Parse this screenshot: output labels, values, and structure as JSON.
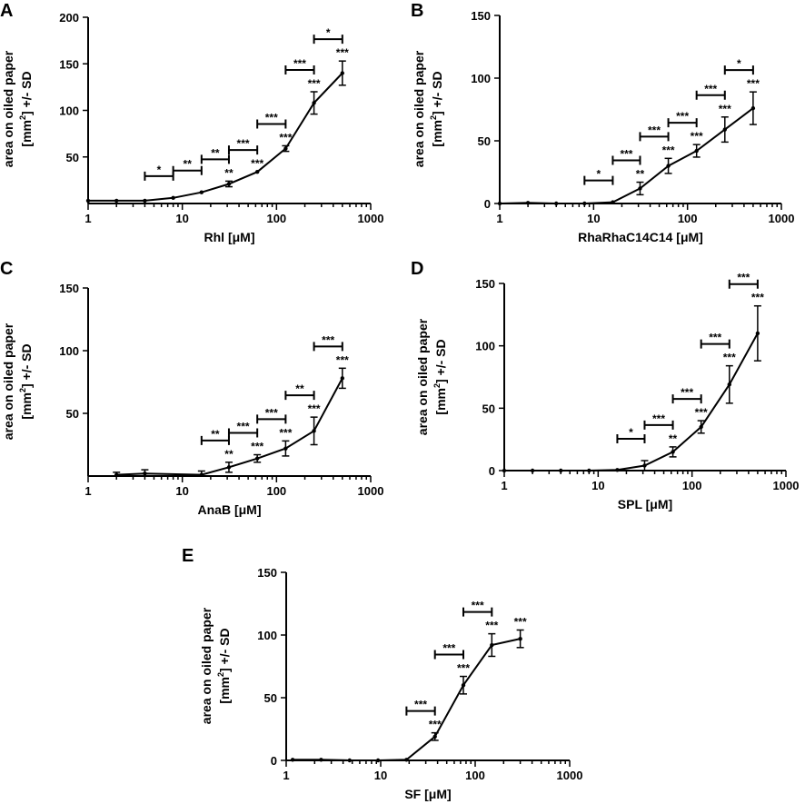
{
  "figure": {
    "ylabel_line1": "area on oiled paper",
    "ylabel_line2_pre": "[mm",
    "ylabel_line2_sup": "2",
    "ylabel_line2_post": "] +/- SD"
  },
  "chart_data": [
    {
      "panel": "A",
      "type": "line",
      "xlabel": "Rhl [μM]",
      "xscale": "log",
      "xlim": [
        1,
        1000
      ],
      "xticks": [
        1,
        10,
        100,
        1000
      ],
      "xtick_labels": [
        "1",
        "10",
        "100",
        "1000"
      ],
      "ylim": [
        0,
        200
      ],
      "yticks": [
        50,
        100,
        150,
        200
      ],
      "ytick_labels": [
        "50",
        "100",
        "150",
        "200"
      ],
      "x": [
        1,
        2,
        4,
        8,
        16,
        31.25,
        62.5,
        125,
        250,
        500
      ],
      "y": [
        3,
        3,
        3,
        6,
        12,
        21,
        34,
        59,
        108,
        140
      ],
      "err": [
        0,
        0,
        0,
        0,
        0,
        3,
        0,
        3,
        12,
        13
      ],
      "point_sig": [
        "",
        "",
        "",
        "",
        "",
        "**",
        "***",
        "***",
        "***",
        "***"
      ],
      "bracket_sig": [
        {
          "x1": 4,
          "x2": 8,
          "label": "*"
        },
        {
          "x1": 8,
          "x2": 16,
          "label": "**"
        },
        {
          "x1": 16,
          "x2": 31.25,
          "label": "**"
        },
        {
          "x1": 31.25,
          "x2": 62.5,
          "label": "***"
        },
        {
          "x1": 62.5,
          "x2": 125,
          "label": "***"
        },
        {
          "x1": 125,
          "x2": 250,
          "label": "***"
        },
        {
          "x1": 250,
          "x2": 500,
          "label": "*"
        }
      ]
    },
    {
      "panel": "B",
      "type": "line",
      "xlabel": "RhaRhaC14C14 [μM]",
      "xscale": "log",
      "xlim": [
        1,
        1000
      ],
      "xticks": [
        1,
        10,
        100,
        1000
      ],
      "xtick_labels": [
        "1",
        "10",
        "100",
        "1000"
      ],
      "ylim": [
        0,
        150
      ],
      "yticks": [
        0,
        50,
        100,
        150
      ],
      "ytick_labels": [
        "0",
        "50",
        "100",
        "150"
      ],
      "x": [
        1,
        2,
        4,
        8,
        16,
        31.25,
        62.5,
        125,
        250,
        500
      ],
      "y": [
        0,
        0.5,
        0,
        0,
        1,
        12,
        30,
        42,
        59,
        76
      ],
      "err": [
        0,
        0,
        0,
        0,
        0,
        5,
        6,
        5,
        10,
        13
      ],
      "point_sig": [
        "",
        "",
        "",
        "",
        "",
        "**",
        "***",
        "***",
        "***",
        "***"
      ],
      "bracket_sig": [
        {
          "x1": 8,
          "x2": 16,
          "label": "*"
        },
        {
          "x1": 16,
          "x2": 31.25,
          "label": "***"
        },
        {
          "x1": 31.25,
          "x2": 62.5,
          "label": "***"
        },
        {
          "x1": 62.5,
          "x2": 125,
          "label": "***"
        },
        {
          "x1": 125,
          "x2": 250,
          "label": "***"
        },
        {
          "x1": 250,
          "x2": 500,
          "label": "*"
        }
      ]
    },
    {
      "panel": "C",
      "type": "line",
      "xlabel": "AnaB [μM]",
      "xscale": "log",
      "xlim": [
        1,
        1000
      ],
      "xticks": [
        1,
        10,
        100,
        1000
      ],
      "xtick_labels": [
        "1",
        "10",
        "100",
        "1000"
      ],
      "ylim": [
        0,
        150
      ],
      "yticks": [
        50,
        100,
        150
      ],
      "ytick_labels": [
        "50",
        "100",
        "150"
      ],
      "x": [
        2,
        4,
        16,
        31.25,
        62.5,
        125,
        250,
        500
      ],
      "y": [
        1,
        2,
        1,
        7,
        14,
        22,
        36,
        78
      ],
      "err": [
        2,
        3,
        3,
        4,
        3,
        6,
        11,
        8
      ],
      "point_sig": [
        "",
        "",
        "",
        "**",
        "***",
        "***",
        "***",
        "***"
      ],
      "bracket_sig": [
        {
          "x1": 16,
          "x2": 31.25,
          "label": "**"
        },
        {
          "x1": 31.25,
          "x2": 62.5,
          "label": "***"
        },
        {
          "x1": 62.5,
          "x2": 125,
          "label": "***"
        },
        {
          "x1": 125,
          "x2": 250,
          "label": "**"
        },
        {
          "x1": 250,
          "x2": 500,
          "label": "***"
        }
      ]
    },
    {
      "panel": "D",
      "type": "line",
      "xlabel": "SPL [μM]",
      "xscale": "log",
      "xlim": [
        1,
        1000
      ],
      "xticks": [
        1,
        10,
        100,
        1000
      ],
      "xtick_labels": [
        "1",
        "10",
        "100",
        "1000"
      ],
      "ylim": [
        0,
        150
      ],
      "yticks": [
        0,
        50,
        100,
        150
      ],
      "ytick_labels": [
        "0",
        "50",
        "100",
        "150"
      ],
      "x": [
        1,
        2,
        4,
        8,
        16,
        31.25,
        62.5,
        125,
        250,
        500
      ],
      "y": [
        0,
        0,
        0,
        0,
        0.5,
        4,
        15,
        35,
        69,
        110
      ],
      "err": [
        0,
        0,
        0,
        0,
        0,
        4,
        4,
        5,
        15,
        22
      ],
      "point_sig": [
        "",
        "",
        "",
        "",
        "",
        "",
        "**",
        "***",
        "***",
        "***"
      ],
      "bracket_sig": [
        {
          "x1": 16,
          "x2": 31.25,
          "label": "*"
        },
        {
          "x1": 31.25,
          "x2": 62.5,
          "label": "***"
        },
        {
          "x1": 62.5,
          "x2": 125,
          "label": "***"
        },
        {
          "x1": 125,
          "x2": 250,
          "label": "***"
        },
        {
          "x1": 250,
          "x2": 500,
          "label": "***"
        }
      ]
    },
    {
      "panel": "E",
      "type": "line",
      "xlabel": "SF [μM]",
      "xscale": "log",
      "xlim": [
        1,
        1000
      ],
      "xticks": [
        1,
        10,
        100,
        1000
      ],
      "xtick_labels": [
        "1",
        "10",
        "100",
        "1000"
      ],
      "ylim": [
        0,
        150
      ],
      "yticks": [
        0,
        50,
        100,
        150
      ],
      "ytick_labels": [
        "0",
        "50",
        "100",
        "150"
      ],
      "x": [
        1.17,
        2.34,
        4.69,
        9.38,
        18.75,
        37.5,
        75,
        150,
        300
      ],
      "y": [
        0.5,
        0.5,
        0,
        0,
        0.5,
        19,
        60,
        92,
        97
      ],
      "err": [
        0,
        0,
        0,
        0,
        0,
        3,
        7,
        9,
        7
      ],
      "point_sig": [
        "",
        "",
        "",
        "",
        "",
        "***",
        "***",
        "***",
        "***"
      ],
      "bracket_sig": [
        {
          "x1": 18.75,
          "x2": 37.5,
          "label": "***"
        },
        {
          "x1": 37.5,
          "x2": 75,
          "label": "***"
        },
        {
          "x1": 75,
          "x2": 150,
          "label": "***"
        }
      ]
    }
  ]
}
